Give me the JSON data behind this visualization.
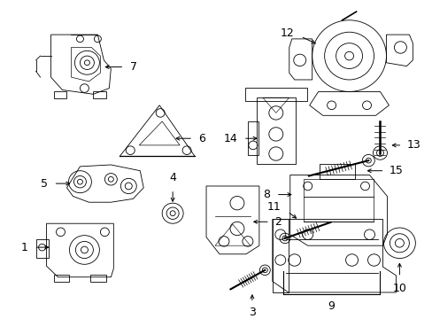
{
  "bg_color": "#ffffff",
  "fig_width": 4.89,
  "fig_height": 3.6,
  "dpi": 100,
  "line_color": "#000000",
  "font_size": 8,
  "lw": 0.6
}
